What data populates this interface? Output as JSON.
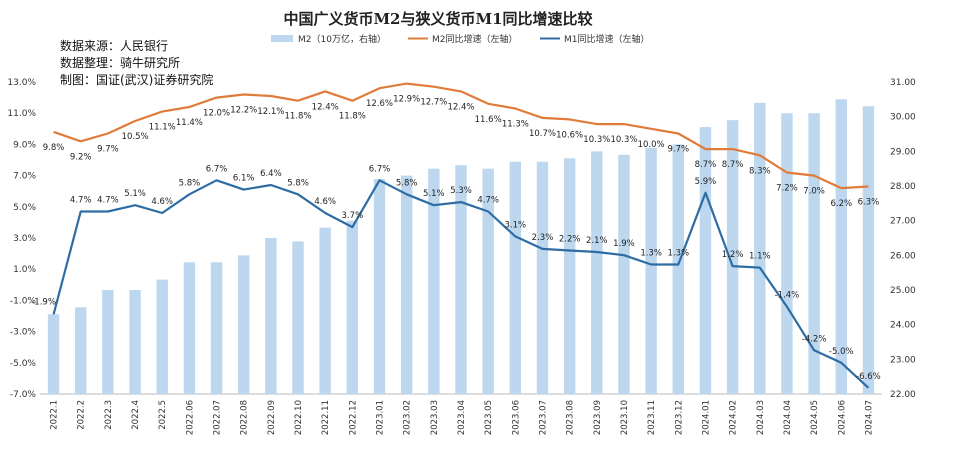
{
  "chart_data": {
    "type": "bar+line",
    "title": "中国广义货币M2与狭义货币M1同比增速比较",
    "source_lines": [
      "数据来源：人民银行",
      "数据整理：骑牛研究所",
      "制图：国证(武汉)证券研究院"
    ],
    "categories": [
      "2022.1",
      "2022.2",
      "2022.3",
      "2022.4",
      "2022.5",
      "2022.06",
      "2022.07",
      "2022.08",
      "2022.09",
      "2022.10",
      "2022.11",
      "2022.12",
      "2023.01",
      "2023.02",
      "2023.03",
      "2023.04",
      "2023.05",
      "2023.06",
      "2023.07",
      "2023.08",
      "2023.09",
      "2023.10",
      "2023.11",
      "2023.12",
      "2024.01",
      "2024.02",
      "2024.03",
      "2024.04",
      "2024.05",
      "2024.06",
      "2024.07"
    ],
    "series": [
      {
        "name": "M2（10万亿，右轴）",
        "type": "bar",
        "axis": "right",
        "color": "#bdd7ee",
        "values": [
          24.3,
          24.5,
          25.0,
          25.0,
          25.3,
          25.8,
          25.8,
          26.0,
          26.5,
          26.4,
          26.8,
          27.0,
          28.2,
          28.3,
          28.5,
          28.6,
          28.5,
          28.7,
          28.7,
          28.8,
          29.0,
          28.9,
          29.1,
          29.2,
          29.7,
          29.9,
          30.4,
          30.1,
          30.1,
          30.5,
          30.3
        ]
      },
      {
        "name": "M2同比增速（左轴）",
        "type": "line",
        "axis": "left",
        "color": "#e07b39",
        "values": [
          9.8,
          9.2,
          9.7,
          10.5,
          11.1,
          11.4,
          12.0,
          12.2,
          12.1,
          11.8,
          12.4,
          11.8,
          12.6,
          12.9,
          12.7,
          12.4,
          11.6,
          11.3,
          10.7,
          10.6,
          10.3,
          10.3,
          10.0,
          9.7,
          8.7,
          8.7,
          8.3,
          7.2,
          7.0,
          6.2,
          6.3
        ],
        "labels": [
          "9.8%",
          "9.2%",
          "9.7%",
          "10.5%",
          "11.1%",
          "11.4%",
          "12.0%",
          "12.2%",
          "12.1%",
          "11.8%",
          "12.4%",
          "11.8%",
          "12.6%",
          "12.9%",
          "12.7%",
          "12.4%",
          "11.6%",
          "11.3%",
          "10.7%",
          "10.6%",
          "10.3%",
          "10.3%",
          "10.0%",
          "9.7%",
          "8.7%",
          "8.7%",
          "8.3%",
          "7.2%",
          "7.0%",
          "6.2%",
          "6.3%"
        ]
      },
      {
        "name": "M1同比增速（左轴）",
        "type": "line",
        "axis": "left",
        "color": "#2e6da4",
        "values": [
          -1.9,
          4.7,
          4.7,
          5.1,
          4.6,
          5.8,
          6.7,
          6.1,
          6.4,
          5.8,
          4.6,
          3.7,
          6.7,
          5.8,
          5.1,
          5.3,
          4.7,
          3.1,
          2.3,
          2.2,
          2.1,
          1.9,
          1.3,
          1.3,
          5.9,
          1.2,
          1.1,
          -1.4,
          -4.2,
          -5.0,
          -6.6
        ],
        "labels": [
          "-1.9%",
          "4.7%",
          "4.7%",
          "5.1%",
          "4.6%",
          "5.8%",
          "6.7%",
          "6.1%",
          "6.4%",
          "5.8%",
          "4.6%",
          "3.7%",
          "6.7%",
          "5.8%",
          "5.1%",
          "5.3%",
          "4.7%",
          "3.1%",
          "2.3%",
          "2.2%",
          "2.1%",
          "1.9%",
          "1.3%",
          "1.3%",
          "5.9%",
          "1.2%",
          "1.1%",
          "-1.4%",
          "-4.2%",
          "-5.0%",
          "-6.6%"
        ]
      }
    ],
    "y_left": {
      "min": -7.0,
      "max": 13.0,
      "ticks": [
        "-7.0%",
        "-5.0%",
        "-3.0%",
        "-1.0%",
        "1.0%",
        "3.0%",
        "5.0%",
        "7.0%",
        "9.0%",
        "11.0%",
        "13.0%"
      ]
    },
    "y_right": {
      "min": 22.0,
      "max": 31.0,
      "ticks": [
        "22.00",
        "23.00",
        "24.00",
        "25.00",
        "26.00",
        "27.00",
        "28.00",
        "29.00",
        "30.00",
        "31.00"
      ]
    },
    "grid": false,
    "legend": "top"
  }
}
